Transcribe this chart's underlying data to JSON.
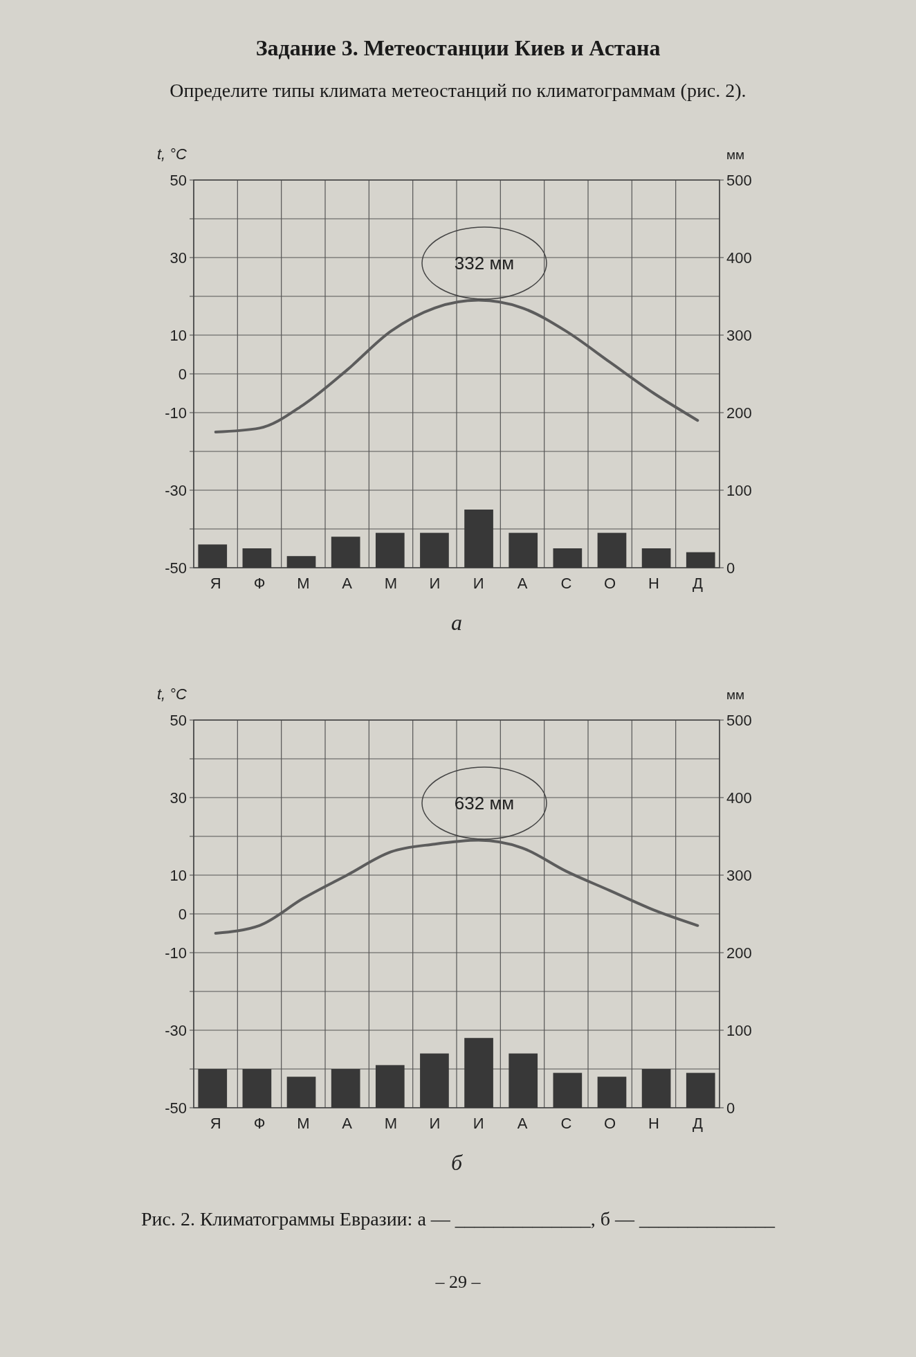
{
  "chart_data": [
    {
      "type": "bar",
      "title": "Задание 3. Метеостанции Киев и Астана",
      "subtitle": "Определите типы климата метеостанций по климатограммам (рис. 2).",
      "xlabel": "а",
      "ylabel": "t, °C",
      "y2label": "мм",
      "categories": [
        "Я",
        "Ф",
        "М",
        "А",
        "М",
        "И",
        "И",
        "А",
        "С",
        "О",
        "Н",
        "Д"
      ],
      "series": [
        {
          "type": "bar",
          "axis": "y2",
          "color": "#383838",
          "values": [
            30,
            25,
            15,
            40,
            45,
            45,
            75,
            45,
            25,
            45,
            25,
            20
          ]
        },
        {
          "type": "line",
          "color": "#5c5c5c",
          "values": [
            -15,
            -14,
            -8,
            1,
            11,
            17,
            19,
            17,
            11,
            3,
            -5,
            -12
          ]
        }
      ],
      "ylim": [
        -50,
        50
      ],
      "yticks": [
        50,
        {
          "value": 40,
          "label": null
        },
        30,
        {
          "value": 20,
          "label": null
        },
        10,
        0,
        -10,
        {
          "value": -20,
          "label": null
        },
        -30,
        {
          "value": -40,
          "label": null
        },
        -50
      ],
      "y2lim": [
        0,
        500
      ],
      "y2ticks": [
        0,
        100,
        200,
        300,
        400,
        500
      ],
      "grid": true,
      "annotations": [
        "332 мм"
      ]
    },
    {
      "type": "bar",
      "xlabel": "б",
      "ylabel": "t, °C",
      "y2label": "мм",
      "categories": [
        "Я",
        "Ф",
        "М",
        "А",
        "М",
        "И",
        "И",
        "А",
        "С",
        "О",
        "Н",
        "Д"
      ],
      "series": [
        {
          "type": "bar",
          "axis": "y2",
          "color": "#383838",
          "values": [
            50,
            50,
            40,
            50,
            55,
            70,
            90,
            70,
            45,
            40,
            50,
            45
          ]
        },
        {
          "type": "line",
          "color": "#5c5c5c",
          "values": [
            -5,
            -3,
            4,
            10,
            16,
            18,
            19,
            17,
            11,
            6,
            1,
            -3
          ]
        }
      ],
      "ylim": [
        -50,
        50
      ],
      "yticks": [
        50,
        {
          "value": 40,
          "label": null
        },
        30,
        {
          "value": 20,
          "label": null
        },
        10,
        0,
        -10,
        {
          "value": -20,
          "label": null
        },
        -30,
        {
          "value": -40,
          "label": null
        },
        -50
      ],
      "y2lim": [
        0,
        500
      ],
      "y2ticks": [
        0,
        100,
        200,
        300,
        400,
        500
      ],
      "grid": true,
      "annotations": [
        "632 мм",
        "Рис. 2. Климатограммы Евразии: а — ______________, б — ______________",
        "– 29 –"
      ]
    }
  ]
}
